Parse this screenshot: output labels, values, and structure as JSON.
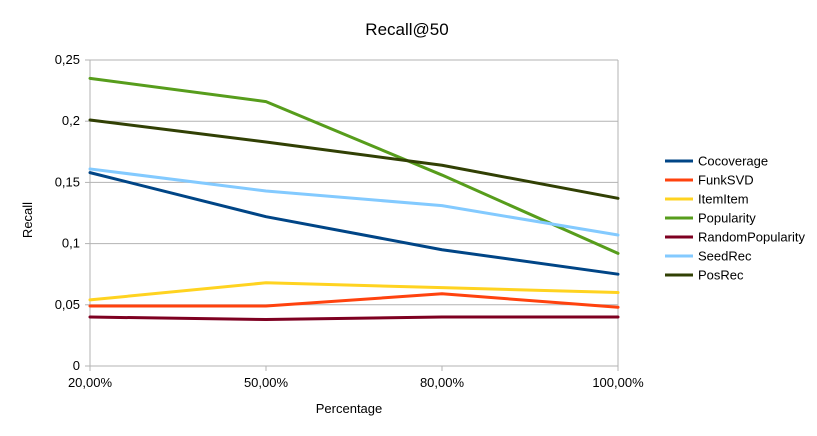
{
  "chart_data": {
    "type": "line",
    "title": "Recall@50",
    "xlabel": "Percentage",
    "ylabel": "Recall",
    "categories": [
      "20,00%",
      "50,00%",
      "80,00%",
      "100,00%"
    ],
    "ylim": [
      0,
      0.25
    ],
    "yticks": [
      0,
      0.05,
      0.1,
      0.15,
      0.2,
      0.25
    ],
    "ytick_labels": [
      "0",
      "0,05",
      "0,1",
      "0,15",
      "0,2",
      "0,25"
    ],
    "grid": "horizontal",
    "legend_position": "right",
    "series": [
      {
        "name": "Cocoverage",
        "color": "#004586",
        "values": [
          0.158,
          0.122,
          0.095,
          0.075
        ]
      },
      {
        "name": "FunkSVD",
        "color": "#ff420e",
        "values": [
          0.049,
          0.049,
          0.059,
          0.048
        ]
      },
      {
        "name": "ItemItem",
        "color": "#ffd320",
        "values": [
          0.054,
          0.068,
          0.064,
          0.06
        ]
      },
      {
        "name": "Popularity",
        "color": "#579d1c",
        "values": [
          0.235,
          0.216,
          0.156,
          0.092
        ]
      },
      {
        "name": "RandomPopularity",
        "color": "#7e0021",
        "values": [
          0.04,
          0.038,
          0.04,
          0.04
        ]
      },
      {
        "name": "SeedRec",
        "color": "#83caff",
        "values": [
          0.161,
          0.143,
          0.131,
          0.107
        ]
      },
      {
        "name": "PosRec",
        "color": "#314004",
        "values": [
          0.201,
          0.183,
          0.164,
          0.137
        ]
      }
    ]
  }
}
